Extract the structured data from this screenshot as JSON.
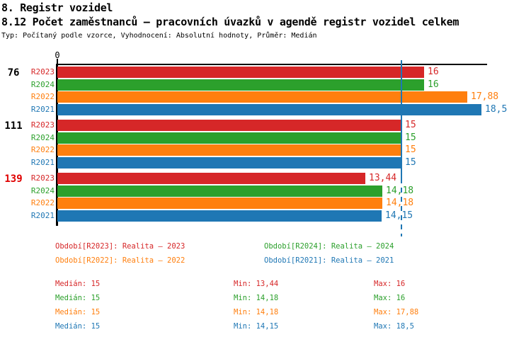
{
  "header": {
    "section_title": "8. Registr vozidel",
    "chart_title": "8.12 Počet zaměstnanců – pracovních úvazků v agendě registr vozidel celkem",
    "meta": "Typ: Počítaný podle vzorce, Vyhodnocení: Absolutní hodnoty, Průměr: Medián"
  },
  "colors": {
    "R2023": "#d62728",
    "R2024": "#2ca02c",
    "R2022": "#ff7f0e",
    "R2021": "#1f77b4",
    "axis": "#000000",
    "median_line": "#1f77b4",
    "group_label_default": "#000000",
    "group_label_highlight": "#e00000"
  },
  "chart_data": {
    "type": "bar",
    "orientation": "horizontal",
    "value_axis": {
      "tick_label": "0",
      "min": 0,
      "max": 18.75
    },
    "median_line": {
      "value": 15
    },
    "series": [
      "R2023",
      "R2024",
      "R2022",
      "R2021"
    ],
    "groups": [
      {
        "label": "76",
        "highlight": false,
        "bars": [
          {
            "series": "R2023",
            "value": 16,
            "display": "16"
          },
          {
            "series": "R2024",
            "value": 16,
            "display": "16"
          },
          {
            "series": "R2022",
            "value": 17.88,
            "display": "17,88"
          },
          {
            "series": "R2021",
            "value": 18.5,
            "display": "18,5"
          }
        ]
      },
      {
        "label": "111",
        "highlight": false,
        "bars": [
          {
            "series": "R2023",
            "value": 15,
            "display": "15"
          },
          {
            "series": "R2024",
            "value": 15,
            "display": "15"
          },
          {
            "series": "R2022",
            "value": 15,
            "display": "15"
          },
          {
            "series": "R2021",
            "value": 15,
            "display": "15"
          }
        ]
      },
      {
        "label": "139",
        "highlight": true,
        "bars": [
          {
            "series": "R2023",
            "value": 13.44,
            "display": "13,44"
          },
          {
            "series": "R2024",
            "value": 14.18,
            "display": "14,18"
          },
          {
            "series": "R2022",
            "value": 14.18,
            "display": "14,18"
          },
          {
            "series": "R2021",
            "value": 14.15,
            "display": "14,15"
          }
        ]
      }
    ],
    "legend": [
      {
        "series": "R2023",
        "label": "Období[R2023]: Realita – 2023"
      },
      {
        "series": "R2024",
        "label": "Období[R2024]: Realita – 2024"
      },
      {
        "series": "R2022",
        "label": "Období[R2022]: Realita – 2022"
      },
      {
        "series": "R2021",
        "label": "Období[R2021]: Realita – 2021"
      }
    ],
    "stats": [
      {
        "series": "R2023",
        "cells": [
          "Medián: 15",
          "Min: 13,44",
          "Max: 16"
        ]
      },
      {
        "series": "R2024",
        "cells": [
          "Medián: 15",
          "Min: 14,18",
          "Max: 16"
        ]
      },
      {
        "series": "R2022",
        "cells": [
          "Medián: 15",
          "Min: 14,18",
          "Max: 17,88"
        ]
      },
      {
        "series": "R2021",
        "cells": [
          "Medián: 15",
          "Min: 14,15",
          "Max: 18,5"
        ]
      }
    ]
  }
}
